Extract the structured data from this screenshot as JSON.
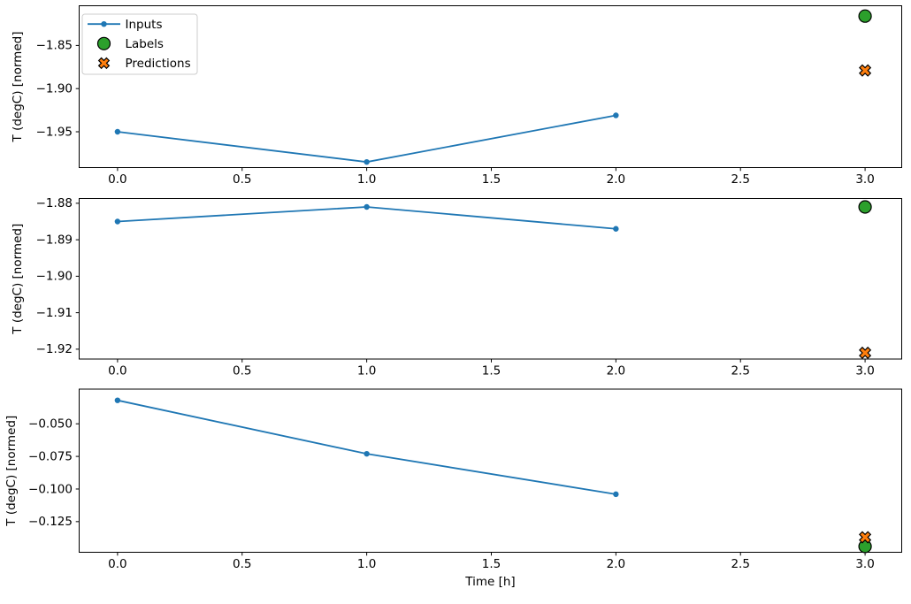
{
  "figure": {
    "background": "#ffffff",
    "xlabel": "Time [h]",
    "ylabel": "T (degC) [normed]"
  },
  "colors": {
    "inputs": "#1f77b4",
    "labels": "#2ca02c",
    "predictions": "#ff7f0e",
    "marker_edge": "#000000",
    "axes": "#000000",
    "legend_border": "#cccccc",
    "legend_bg": "#ffffff"
  },
  "legend": {
    "position": "upper-left",
    "items": [
      {
        "label": "Inputs",
        "marker": "line-dot",
        "color": "#1f77b4"
      },
      {
        "label": "Labels",
        "marker": "circle",
        "color": "#2ca02c"
      },
      {
        "label": "Predictions",
        "marker": "X",
        "color": "#ff7f0e"
      }
    ]
  },
  "chart_data": [
    {
      "type": "line",
      "title": "",
      "xlabel": "",
      "ylabel": "T (degC) [normed]",
      "xlim": [
        -0.154,
        3.147
      ],
      "ylim": [
        -1.9915,
        -1.804
      ],
      "xticks": [
        0.0,
        0.5,
        1.0,
        1.5,
        2.0,
        2.5,
        3.0
      ],
      "xtick_labels": [
        "0.0",
        "0.5",
        "1.0",
        "1.5",
        "2.0",
        "2.5",
        "3.0"
      ],
      "show_xtick_labels": true,
      "yticks": [
        -1.85,
        -1.9,
        -1.95
      ],
      "ytick_labels": [
        "−1.85",
        "−1.90",
        "−1.95"
      ],
      "legend": true,
      "series": [
        {
          "name": "Inputs",
          "type": "line+marker",
          "marker": "dot",
          "color": "#1f77b4",
          "x": [
            0,
            1,
            2
          ],
          "y": [
            -1.95,
            -1.985,
            -1.931
          ]
        },
        {
          "name": "Labels",
          "type": "scatter",
          "marker": "circle",
          "color": "#2ca02c",
          "edge": "#000000",
          "x": [
            3
          ],
          "y": [
            -1.816
          ]
        },
        {
          "name": "Predictions",
          "type": "scatter",
          "marker": "X",
          "color": "#ff7f0e",
          "edge": "#000000",
          "x": [
            3
          ],
          "y": [
            -1.879
          ]
        }
      ]
    },
    {
      "type": "line",
      "title": "",
      "xlabel": "",
      "ylabel": "T (degC) [normed]",
      "xlim": [
        -0.154,
        3.147
      ],
      "ylim": [
        -1.9227,
        -1.8787
      ],
      "xticks": [
        0.0,
        0.5,
        1.0,
        1.5,
        2.0,
        2.5,
        3.0
      ],
      "xtick_labels": [
        "0.0",
        "0.5",
        "1.0",
        "1.5",
        "2.0",
        "2.5",
        "3.0"
      ],
      "show_xtick_labels": true,
      "yticks": [
        -1.88,
        -1.89,
        -1.9,
        -1.91,
        -1.92
      ],
      "ytick_labels": [
        "−1.88",
        "−1.89",
        "−1.90",
        "−1.91",
        "−1.92"
      ],
      "legend": false,
      "series": [
        {
          "name": "Inputs",
          "type": "line+marker",
          "marker": "dot",
          "color": "#1f77b4",
          "x": [
            0,
            1,
            2
          ],
          "y": [
            -1.885,
            -1.881,
            -1.887
          ]
        },
        {
          "name": "Labels",
          "type": "scatter",
          "marker": "circle",
          "color": "#2ca02c",
          "edge": "#000000",
          "x": [
            3
          ],
          "y": [
            -1.881
          ]
        },
        {
          "name": "Predictions",
          "type": "scatter",
          "marker": "X",
          "color": "#ff7f0e",
          "edge": "#000000",
          "x": [
            3
          ],
          "y": [
            -1.921
          ]
        }
      ]
    },
    {
      "type": "line",
      "title": "",
      "xlabel": "Time [h]",
      "ylabel": "T (degC) [normed]",
      "xlim": [
        -0.154,
        3.147
      ],
      "ylim": [
        -0.1485,
        -0.0234
      ],
      "xticks": [
        0.0,
        0.5,
        1.0,
        1.5,
        2.0,
        2.5,
        3.0
      ],
      "xtick_labels": [
        "0.0",
        "0.5",
        "1.0",
        "1.5",
        "2.0",
        "2.5",
        "3.0"
      ],
      "show_xtick_labels": true,
      "yticks": [
        -0.05,
        -0.075,
        -0.1,
        -0.125
      ],
      "ytick_labels": [
        "−0.050",
        "−0.075",
        "−0.100",
        "−0.125"
      ],
      "legend": false,
      "series": [
        {
          "name": "Inputs",
          "type": "line+marker",
          "marker": "dot",
          "color": "#1f77b4",
          "x": [
            0,
            1,
            2
          ],
          "y": [
            -0.032,
            -0.073,
            -0.104
          ]
        },
        {
          "name": "Labels",
          "type": "scatter",
          "marker": "circle",
          "color": "#2ca02c",
          "edge": "#000000",
          "x": [
            3
          ],
          "y": [
            -0.144
          ]
        },
        {
          "name": "Predictions",
          "type": "scatter",
          "marker": "X",
          "color": "#ff7f0e",
          "edge": "#000000",
          "x": [
            3
          ],
          "y": [
            -0.137
          ]
        }
      ]
    }
  ]
}
